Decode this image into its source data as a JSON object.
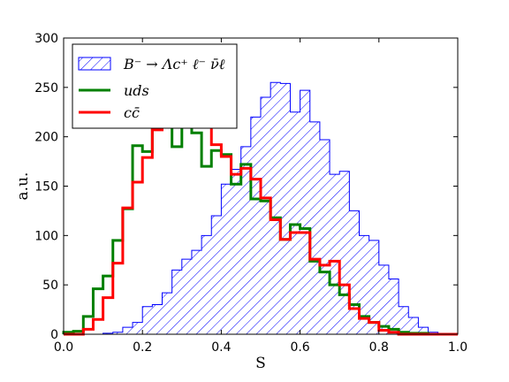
{
  "chart_data": {
    "type": "histogram",
    "title": "",
    "xlabel": "S",
    "ylabel": "a.u.",
    "xlim": [
      0.0,
      1.0
    ],
    "ylim": [
      0,
      300
    ],
    "xticks": [
      "0.0",
      "0.2",
      "0.4",
      "0.6",
      "0.8",
      "1.0"
    ],
    "yticks": [
      "0",
      "50",
      "100",
      "150",
      "200",
      "250",
      "300"
    ],
    "bin_edges": [
      0.0,
      0.025,
      0.05,
      0.075,
      0.1,
      0.125,
      0.15,
      0.175,
      0.2,
      0.225,
      0.25,
      0.275,
      0.3,
      0.325,
      0.35,
      0.375,
      0.4,
      0.425,
      0.45,
      0.475,
      0.5,
      0.525,
      0.55,
      0.575,
      0.6,
      0.625,
      0.65,
      0.675,
      0.7,
      0.725,
      0.75,
      0.775,
      0.8,
      0.825,
      0.85,
      0.875,
      0.9,
      0.925,
      0.95,
      0.975,
      1.0
    ],
    "legend_position": "top-left",
    "grid": false,
    "series": [
      {
        "name": "B⁻ → Λc⁺ ℓ⁻ ν̄ℓ",
        "style": "hatched",
        "color": "#0000ff",
        "values": [
          0,
          0,
          0,
          0,
          1,
          2,
          7,
          12,
          28,
          30,
          42,
          65,
          76,
          85,
          100,
          120,
          152,
          167,
          190,
          220,
          240,
          255,
          254,
          225,
          247,
          215,
          197,
          162,
          165,
          125,
          100,
          95,
          70,
          56,
          28,
          17,
          7,
          2,
          0,
          0
        ]
      },
      {
        "name": "uds",
        "style": "step",
        "color": "#008000",
        "values": [
          2,
          3,
          18,
          46,
          59,
          95,
          127,
          191,
          185,
          223,
          214,
          190,
          212,
          204,
          170,
          186,
          182,
          152,
          172,
          137,
          135,
          118,
          96,
          111,
          107,
          74,
          63,
          50,
          40,
          30,
          18,
          12,
          8,
          5,
          2,
          1,
          1,
          0,
          0,
          0
        ]
      },
      {
        "name": "cc̄",
        "style": "step",
        "color": "#ff0000",
        "values": [
          0,
          0,
          5,
          15,
          37,
          72,
          128,
          154,
          179,
          207,
          226,
          221,
          214,
          221,
          222,
          192,
          180,
          162,
          168,
          157,
          138,
          116,
          96,
          103,
          103,
          76,
          70,
          74,
          50,
          26,
          16,
          12,
          4,
          2,
          0,
          0,
          0,
          0,
          0,
          0
        ]
      }
    ]
  }
}
